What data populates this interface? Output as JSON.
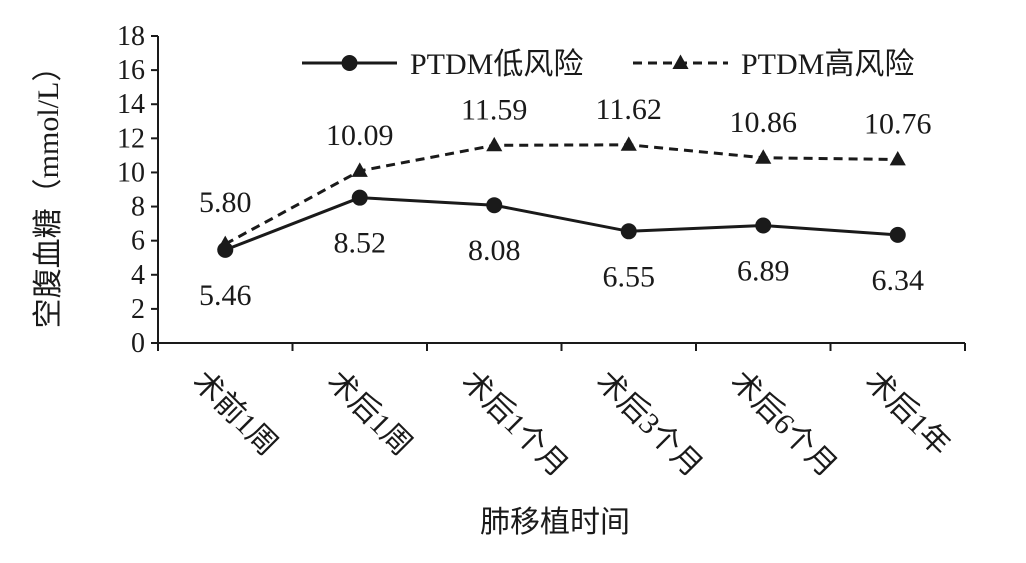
{
  "chart_data": {
    "type": "line",
    "xlabel": "肺移植时间",
    "ylabel": "空腹血糖（mmol/L）",
    "ylim": [
      0,
      18
    ],
    "y_ticks": [
      0,
      2,
      4,
      6,
      8,
      10,
      12,
      14,
      16,
      18
    ],
    "categories": [
      "术前1周",
      "术后1周",
      "术后1个月",
      "术后3个月",
      "术后6个月",
      "术后1年"
    ],
    "legend_position": "top",
    "grid": false,
    "series": [
      {
        "name": "PTDM低风险",
        "values": [
          5.46,
          8.52,
          8.08,
          6.55,
          6.89,
          6.34
        ],
        "labels": [
          "5.46",
          "8.52",
          "8.08",
          "6.55",
          "6.89",
          "6.34"
        ],
        "style": "solid",
        "marker": "circle",
        "color": "#1a1a1a"
      },
      {
        "name": "PTDM高风险",
        "values": [
          5.8,
          10.09,
          11.59,
          11.62,
          10.86,
          10.76
        ],
        "labels": [
          "5.80",
          "10.09",
          "11.59",
          "11.62",
          "10.86",
          "10.76"
        ],
        "style": "dashed",
        "marker": "triangle",
        "color": "#1a1a1a"
      }
    ]
  }
}
